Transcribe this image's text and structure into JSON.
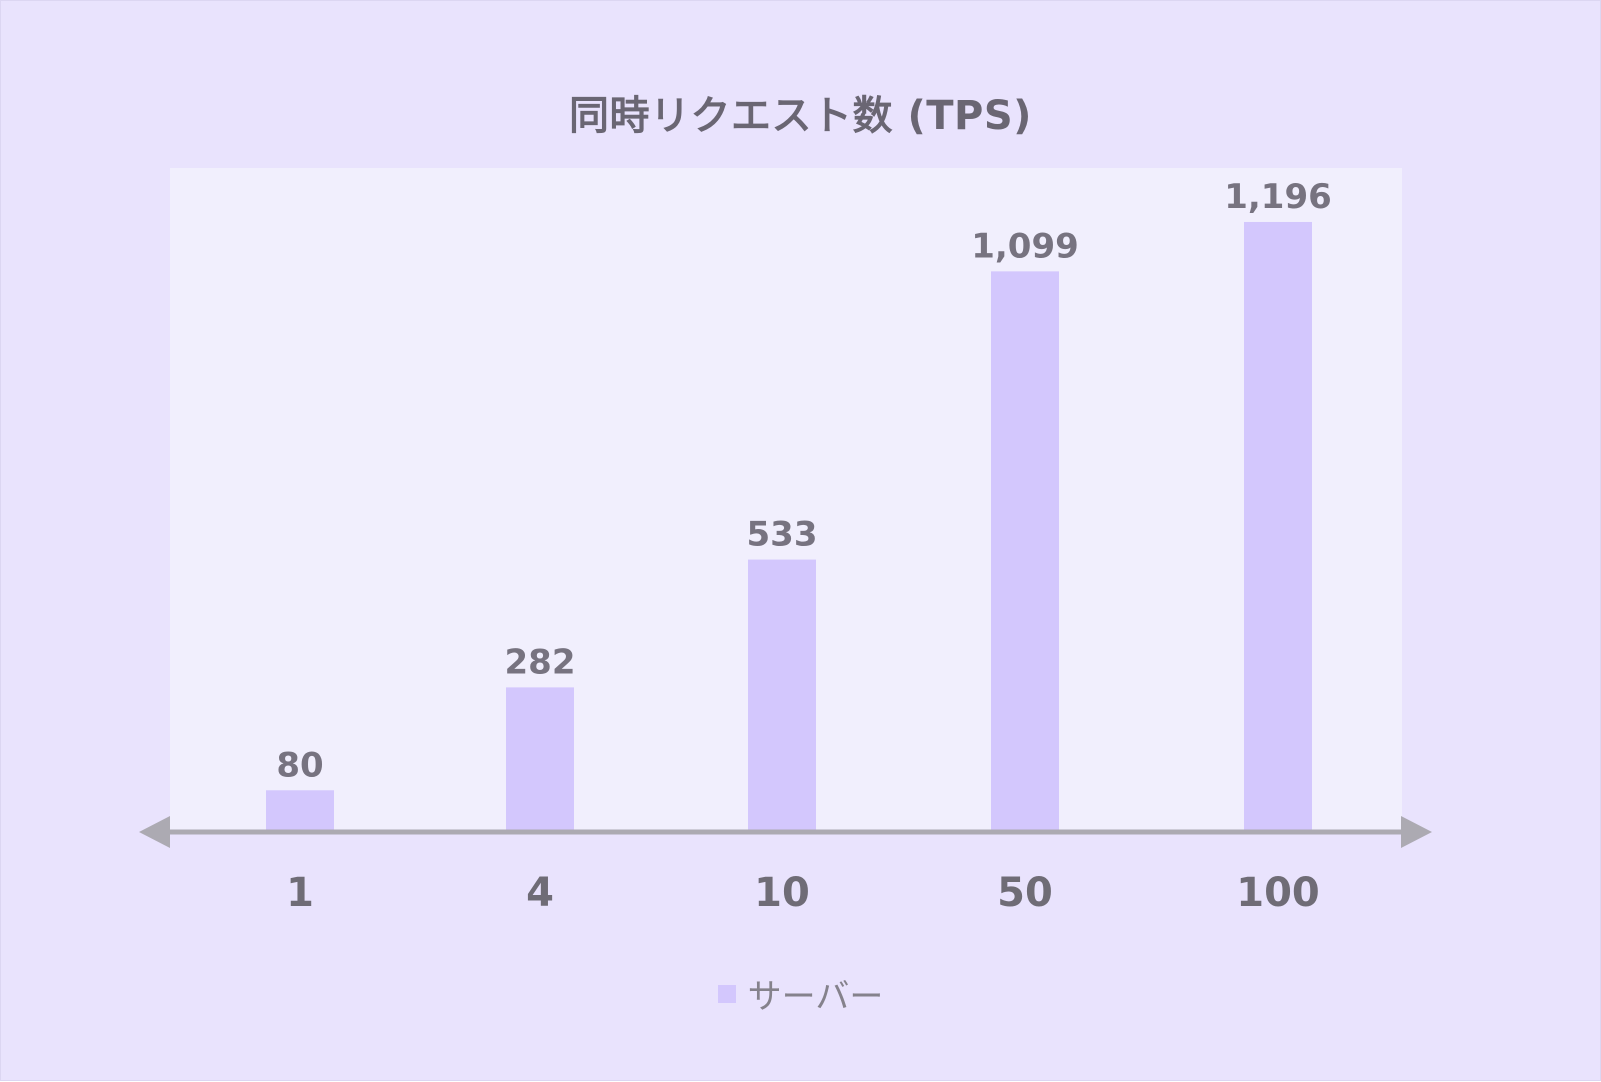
{
  "colors": {
    "background": "#e9e3fd",
    "plot_area": "#f1effd",
    "bar": "#d3c7fd",
    "axis": "#acaab2"
  },
  "chart_data": {
    "type": "bar",
    "title": "同時リクエスト数 (TPS)",
    "categories": [
      "1",
      "4",
      "10",
      "50",
      "100"
    ],
    "series": [
      {
        "name": "サーバー",
        "values": [
          80,
          282,
          533,
          1099,
          1196
        ]
      }
    ],
    "value_labels": [
      "80",
      "282",
      "533",
      "1,099",
      "1,196"
    ],
    "ylim": [
      0,
      1300
    ],
    "grid": false,
    "legend": "bottom"
  }
}
